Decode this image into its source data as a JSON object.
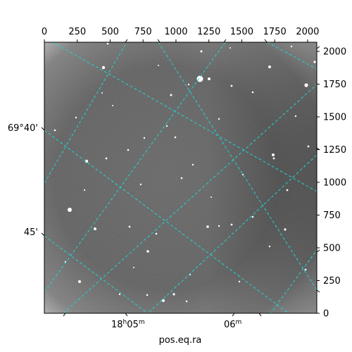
{
  "figure": {
    "x_axis_label": "pos.eq.ra",
    "pixel_x_ticks": [
      "0",
      "250",
      "500",
      "750",
      "1000",
      "1250",
      "1500",
      "1750",
      "2000"
    ],
    "pixel_y_ticks": [
      "0",
      "250",
      "500",
      "750",
      "1000",
      "1250",
      "1500",
      "1750",
      "2000"
    ],
    "ra_ticks": [
      {
        "hours": "18",
        "minutes": "05",
        "hour_unit": "h",
        "minute_unit": "m"
      },
      {
        "hours": "",
        "minutes": "06",
        "hour_unit": "",
        "minute_unit": "m"
      }
    ],
    "dec_ticks": [
      "69°40'",
      "45'"
    ],
    "grid_color": "#22d3d3",
    "image_colormap": "gray"
  }
}
